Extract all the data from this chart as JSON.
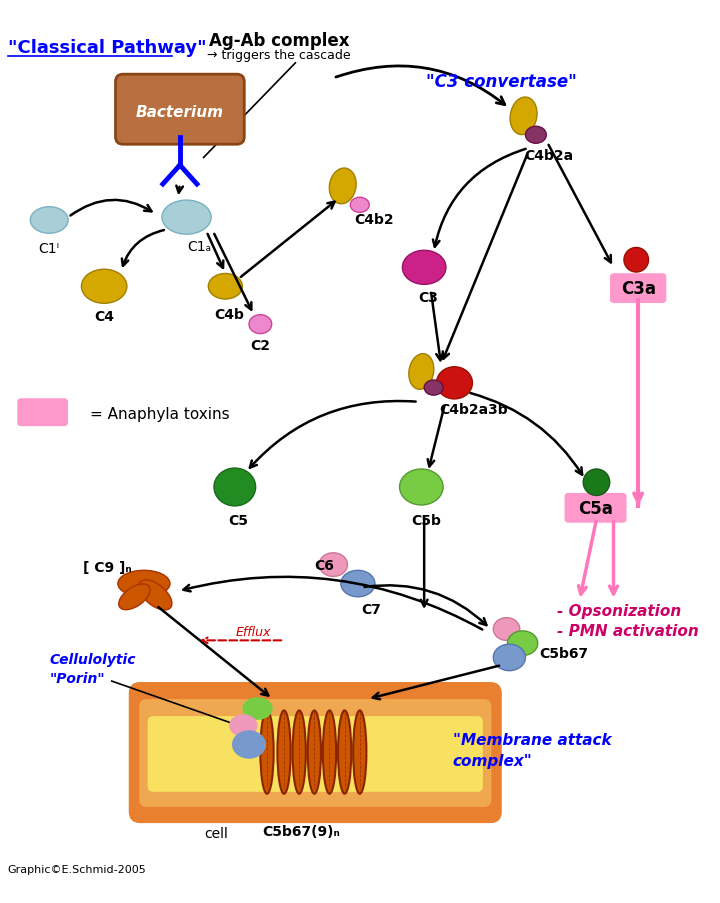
{
  "bg_color": "#ffffff",
  "fig_width": 7.2,
  "fig_height": 9.04,
  "labels": {
    "classical_pathway": "\"Classical Pathway\"",
    "ag_ab": "Ag-Ab complex",
    "ag_ab_sub": "→ triggers the cascade",
    "c3_convertase": "\"C3 convertase\"",
    "bacterium": "Bacterium",
    "c1i": "C1ᴵ",
    "c1a": "C1ₐ",
    "c4": "C4",
    "c4b": "C4b",
    "c4b2": "C4b2",
    "c2": "C2",
    "c3": "C3",
    "c4b2a": "C4b2a",
    "c3a": "C3a",
    "c4b2a3b": "C4b2a3b",
    "anaphyla": "= Anaphyla toxins",
    "c5": "C5",
    "c5b": "C5b",
    "c5a": "C5a",
    "c6": "C6",
    "c7": "C7",
    "c9n": "[ C9 ]ₙ",
    "efflux": "Efflux",
    "cellulolytic": "Cellulolytic",
    "porin": "\"Porin\"",
    "c5b67": "C5b67",
    "membrane_attack": "\"Membrane attack\ncomplex\"",
    "c5b679n": "C5b67(9)ₙ",
    "cell": "cell",
    "opsonization": "- Opsonization",
    "pmn": "- PMN activation",
    "graphic": "Graphic©E.Schmid-2005"
  },
  "colors": {
    "light_blue": "#a8cfd8",
    "gold": "#d4a800",
    "magenta": "#cc2288",
    "pink_small": "#ee88cc",
    "dark_red": "#cc1111",
    "green_dark": "#228b22",
    "green_light": "#77cc44",
    "green_teal": "#1a7a1a",
    "orange": "#cc5500",
    "pink_blob": "#ee99bb",
    "blue_blob": "#7799cc",
    "pink_box": "#ff99cc",
    "pink_arrow": "#ff77bb",
    "black": "#000000",
    "brown": "#b87040",
    "brown_dark": "#8b4513",
    "purple": "#883366",
    "membrane_outer": "#e88030",
    "membrane_mid": "#f0a850",
    "membrane_inner": "#f8e060",
    "red_dashed": "#cc0000"
  }
}
